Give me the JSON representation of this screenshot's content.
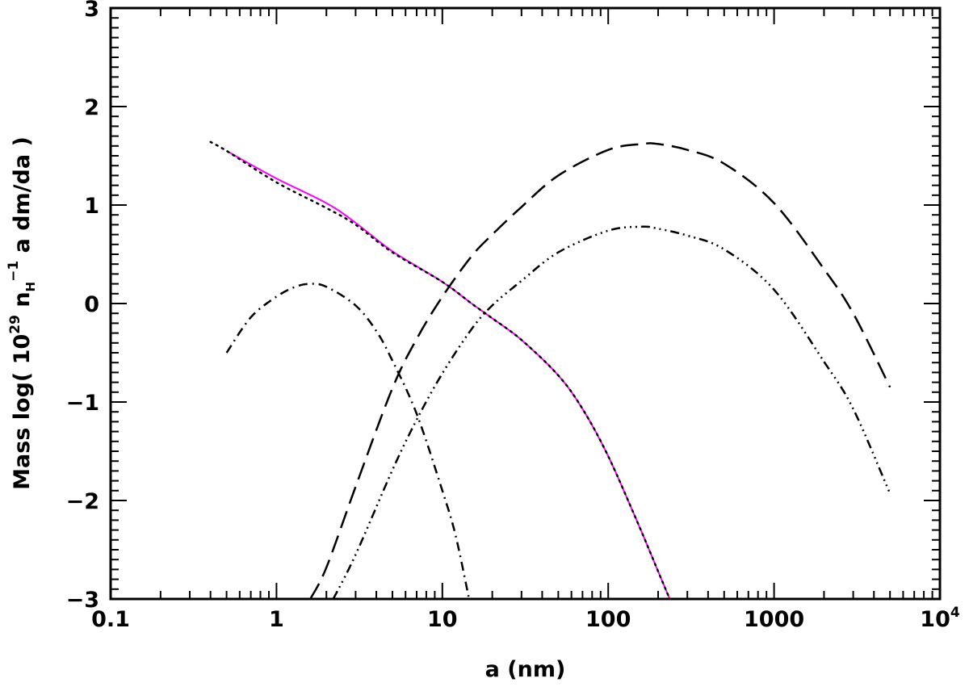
{
  "chart_data": {
    "type": "line",
    "xscale": "log",
    "xlim": [
      0.1,
      10000
    ],
    "ylim": [
      -3,
      3
    ],
    "grid": false,
    "xlabel": "a (nm)",
    "ylabel": {
      "prefix": "Mass log(  10",
      "exp29": "29",
      "nh": " n",
      "sub_h": "H",
      "exp_m1": "−1",
      "suffix": "  a dm/da )"
    },
    "x_ticks": [
      {
        "value": 0.1,
        "label": "0.1"
      },
      {
        "value": 1,
        "label": "1"
      },
      {
        "value": 10,
        "label": "10"
      },
      {
        "value": 100,
        "label": "100"
      },
      {
        "value": 1000,
        "label": "1000"
      },
      {
        "value": 10000,
        "label": "10",
        "sup": "4"
      }
    ],
    "y_ticks": [
      {
        "value": -3,
        "label": "−3"
      },
      {
        "value": -2,
        "label": "−2"
      },
      {
        "value": -1,
        "label": "−1"
      },
      {
        "value": 0,
        "label": "0"
      },
      {
        "value": 1,
        "label": "1"
      },
      {
        "value": 2,
        "label": "2"
      },
      {
        "value": 3,
        "label": "3"
      }
    ],
    "series": [
      {
        "color": "#ff00ff",
        "style": "solid",
        "x": [
          0.5,
          1,
          2,
          3,
          5,
          10,
          15,
          20,
          30,
          50,
          70,
          100,
          150,
          200,
          235
        ],
        "y": [
          1.55,
          1.27,
          1.02,
          0.82,
          0.53,
          0.22,
          0.0,
          -0.15,
          -0.37,
          -0.73,
          -1.07,
          -1.55,
          -2.22,
          -2.72,
          -3.0
        ]
      },
      {
        "color": "#000000",
        "style": "dotted",
        "x": [
          0.4,
          0.5,
          1,
          2,
          3,
          5,
          10,
          15,
          20,
          30,
          50,
          70,
          100,
          150,
          200,
          235
        ],
        "y": [
          1.64,
          1.55,
          1.23,
          0.97,
          0.8,
          0.52,
          0.22,
          0.0,
          -0.15,
          -0.37,
          -0.73,
          -1.07,
          -1.55,
          -2.22,
          -2.72,
          -3.0
        ]
      },
      {
        "color": "#000000",
        "style": "dashdot",
        "x": [
          0.5,
          0.7,
          1,
          1.3,
          1.6,
          2,
          3,
          4,
          5,
          7,
          10,
          12,
          14.5
        ],
        "y": [
          -0.5,
          -0.14,
          0.07,
          0.17,
          0.2,
          0.17,
          -0.02,
          -0.28,
          -0.58,
          -1.12,
          -1.9,
          -2.35,
          -3.0
        ]
      },
      {
        "color": "#000000",
        "style": "longdash",
        "x": [
          1.6,
          2,
          3,
          5,
          7,
          10,
          15,
          20,
          30,
          50,
          100,
          160,
          200,
          300,
          500,
          1000,
          2000,
          3000,
          5000
        ],
        "y": [
          -3.0,
          -2.68,
          -1.86,
          -0.86,
          -0.36,
          0.07,
          0.48,
          0.7,
          0.98,
          1.3,
          1.56,
          1.62,
          1.62,
          1.56,
          1.42,
          1.02,
          0.35,
          -0.1,
          -0.85
        ]
      },
      {
        "color": "#000000",
        "style": "dashdotdotdot",
        "x": [
          2.2,
          3,
          5,
          7,
          10,
          15,
          20,
          30,
          50,
          100,
          160,
          200,
          300,
          500,
          1000,
          2000,
          3000,
          5000
        ],
        "y": [
          -3.0,
          -2.55,
          -1.69,
          -1.18,
          -0.71,
          -0.26,
          -0.02,
          0.23,
          0.52,
          0.74,
          0.78,
          0.76,
          0.69,
          0.55,
          0.14,
          -0.59,
          -1.07,
          -1.93
        ]
      }
    ]
  }
}
